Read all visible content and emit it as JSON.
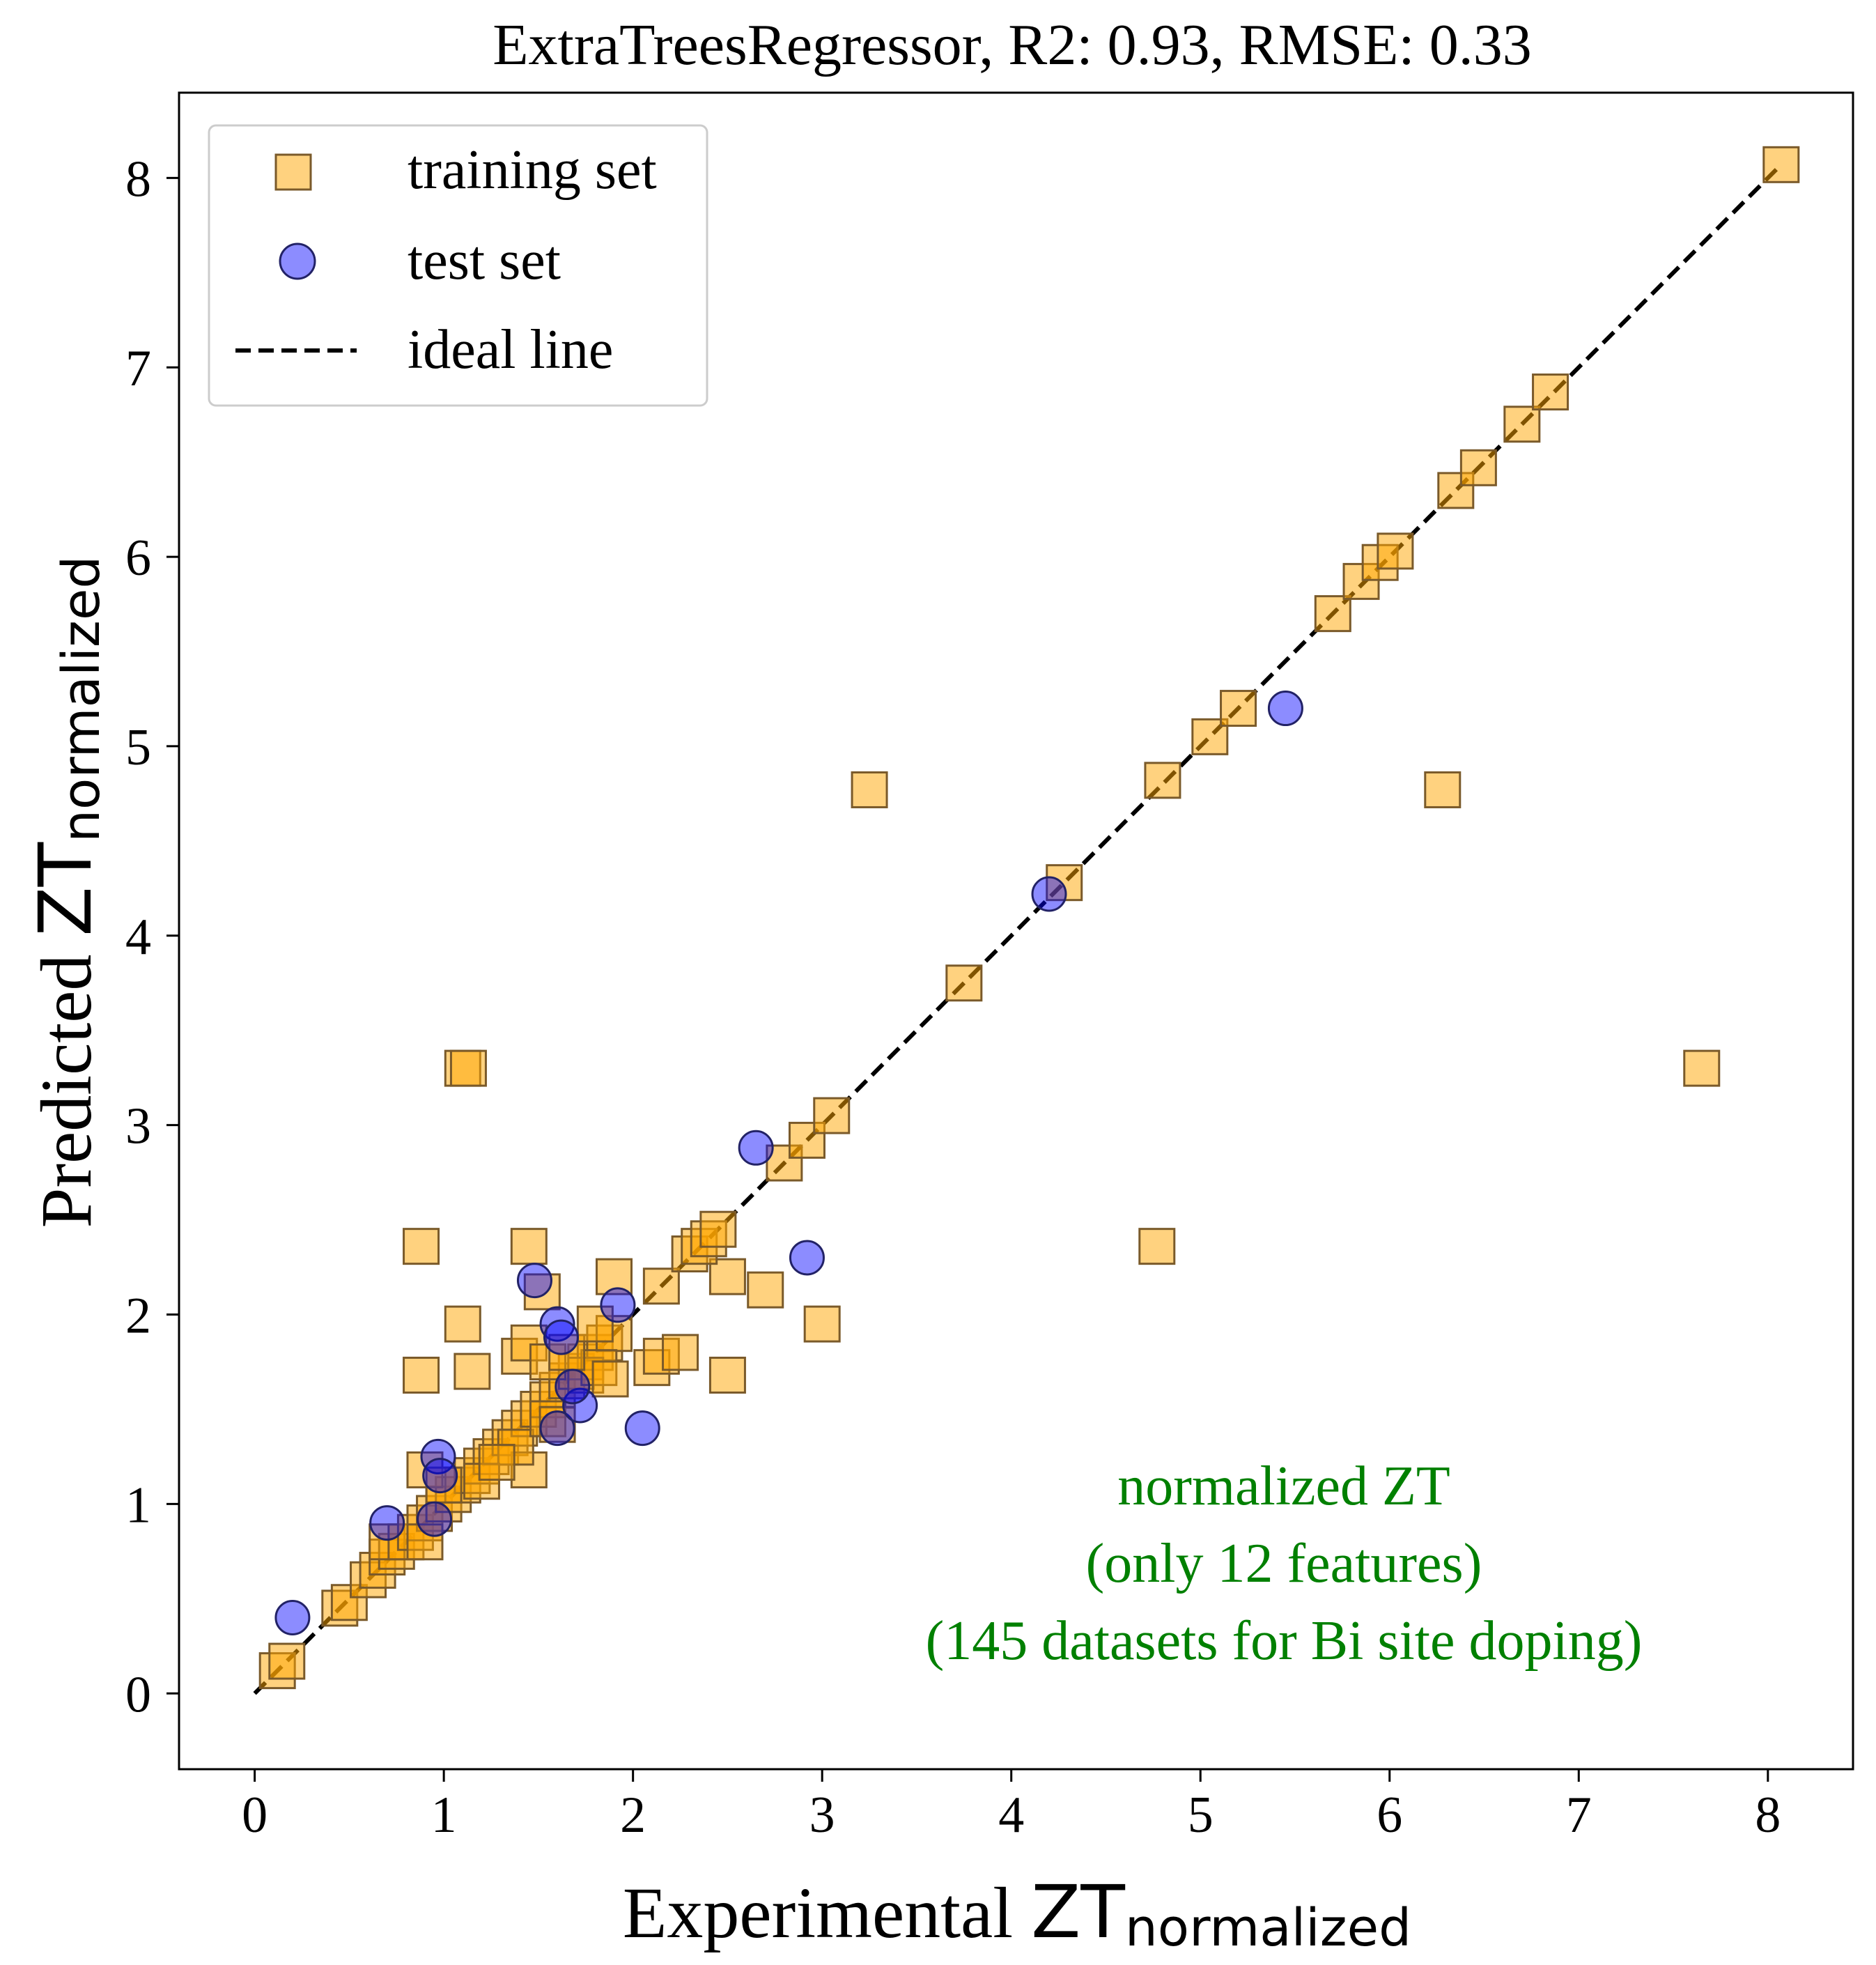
{
  "chart_data": {
    "type": "scatter",
    "title": "ExtraTreesRegressor, R2: 0.93, RMSE: 0.33",
    "xlabel": {
      "main": "Experimental ",
      "symbol": "ZT",
      "subscript": "normalized"
    },
    "ylabel": {
      "main": "Predicted ",
      "symbol": "ZT",
      "subscript": "normalized"
    },
    "xlim": [
      -0.4,
      8.45
    ],
    "ylim": [
      -0.4,
      8.45
    ],
    "xticks": [
      0,
      1,
      2,
      3,
      4,
      5,
      6,
      7,
      8
    ],
    "yticks": [
      0,
      1,
      2,
      3,
      4,
      5,
      6,
      7,
      8
    ],
    "grid": false,
    "legend": {
      "position": "top-left",
      "entries": [
        {
          "label": "training set",
          "marker": "square",
          "color": "#FFA500"
        },
        {
          "label": "test set",
          "marker": "circle",
          "color": "#0000FF"
        },
        {
          "label": "ideal line",
          "marker": "dashed-line",
          "color": "#000000"
        }
      ]
    },
    "annotation": {
      "lines": [
        "normalized ZT",
        "(only 12 features)",
        "(145 datasets for Bi site doping)"
      ],
      "color": "#008000",
      "position": "bottom-right"
    },
    "ideal_line": {
      "x": [
        0,
        8.05
      ],
      "y": [
        0,
        8.05
      ]
    },
    "series": [
      {
        "name": "training set",
        "marker": "square",
        "color": "#FFA500",
        "edgecolor": "#7a5a2a",
        "points": [
          [
            0.12,
            0.12
          ],
          [
            0.17,
            0.17
          ],
          [
            0.45,
            0.45
          ],
          [
            0.5,
            0.48
          ],
          [
            0.6,
            0.6
          ],
          [
            0.65,
            0.65
          ],
          [
            0.7,
            0.72
          ],
          [
            0.75,
            0.75
          ],
          [
            0.7,
            0.8
          ],
          [
            0.8,
            0.8
          ],
          [
            0.85,
            0.85
          ],
          [
            0.9,
            0.9
          ],
          [
            0.95,
            0.95
          ],
          [
            0.9,
            0.8
          ],
          [
            1.0,
            1.0
          ],
          [
            1.05,
            1.05
          ],
          [
            1.1,
            1.1
          ],
          [
            1.15,
            1.15
          ],
          [
            1.2,
            1.2
          ],
          [
            1.25,
            1.25
          ],
          [
            1.3,
            1.3
          ],
          [
            1.35,
            1.35
          ],
          [
            1.4,
            1.4
          ],
          [
            1.45,
            1.45
          ],
          [
            1.5,
            1.5
          ],
          [
            1.55,
            1.55
          ],
          [
            1.6,
            1.6
          ],
          [
            1.65,
            1.65
          ],
          [
            1.7,
            1.7
          ],
          [
            1.75,
            1.75
          ],
          [
            1.8,
            1.8
          ],
          [
            1.85,
            1.85
          ],
          [
            1.9,
            1.9
          ],
          [
            0.9,
            1.18
          ],
          [
            1.0,
            1.1
          ],
          [
            1.45,
            1.18
          ],
          [
            1.38,
            1.3
          ],
          [
            1.2,
            1.12
          ],
          [
            1.28,
            1.22
          ],
          [
            1.55,
            1.45
          ],
          [
            1.6,
            1.42
          ],
          [
            1.75,
            1.68
          ],
          [
            1.82,
            1.72
          ],
          [
            1.88,
            1.66
          ],
          [
            1.4,
            1.78
          ],
          [
            1.45,
            1.85
          ],
          [
            1.55,
            1.75
          ],
          [
            1.65,
            1.8
          ],
          [
            1.8,
            1.95
          ],
          [
            0.88,
            2.36
          ],
          [
            1.45,
            2.36
          ],
          [
            1.52,
            2.12
          ],
          [
            1.1,
            1.95
          ],
          [
            0.88,
            1.68
          ],
          [
            1.15,
            1.7
          ],
          [
            1.9,
            2.2
          ],
          [
            2.15,
            2.15
          ],
          [
            2.1,
            1.72
          ],
          [
            2.15,
            1.78
          ],
          [
            2.25,
            1.8
          ],
          [
            2.5,
            2.2
          ],
          [
            2.7,
            2.13
          ],
          [
            3.0,
            1.95
          ],
          [
            2.5,
            1.68
          ],
          [
            2.3,
            2.32
          ],
          [
            2.35,
            2.36
          ],
          [
            2.4,
            2.4
          ],
          [
            2.45,
            2.45
          ],
          [
            2.8,
            2.8
          ],
          [
            2.92,
            2.92
          ],
          [
            3.05,
            3.05
          ],
          [
            1.1,
            3.3
          ],
          [
            1.13,
            3.3
          ],
          [
            3.25,
            4.77
          ],
          [
            3.75,
            3.75
          ],
          [
            4.28,
            4.28
          ],
          [
            4.8,
            4.82
          ],
          [
            4.77,
            2.36
          ],
          [
            5.05,
            5.05
          ],
          [
            5.2,
            5.2
          ],
          [
            5.7,
            5.7
          ],
          [
            5.85,
            5.87
          ],
          [
            5.95,
            5.97
          ],
          [
            6.03,
            6.03
          ],
          [
            6.28,
            4.77
          ],
          [
            6.35,
            6.35
          ],
          [
            6.47,
            6.47
          ],
          [
            6.7,
            6.7
          ],
          [
            6.85,
            6.87
          ],
          [
            7.65,
            3.3
          ],
          [
            8.07,
            8.07
          ]
        ]
      },
      {
        "name": "test set",
        "marker": "circle",
        "color": "#0000FF",
        "edgecolor": "#222266",
        "points": [
          [
            0.2,
            0.4
          ],
          [
            0.7,
            0.9
          ],
          [
            0.95,
            0.92
          ],
          [
            0.97,
            1.25
          ],
          [
            0.98,
            1.15
          ],
          [
            1.48,
            2.18
          ],
          [
            1.6,
            1.95
          ],
          [
            1.6,
            1.4
          ],
          [
            1.62,
            1.88
          ],
          [
            1.72,
            1.52
          ],
          [
            1.68,
            1.62
          ],
          [
            1.92,
            2.05
          ],
          [
            2.05,
            1.4
          ],
          [
            2.65,
            2.88
          ],
          [
            2.92,
            2.3
          ],
          [
            4.2,
            4.22
          ],
          [
            5.45,
            5.2
          ]
        ]
      }
    ]
  }
}
